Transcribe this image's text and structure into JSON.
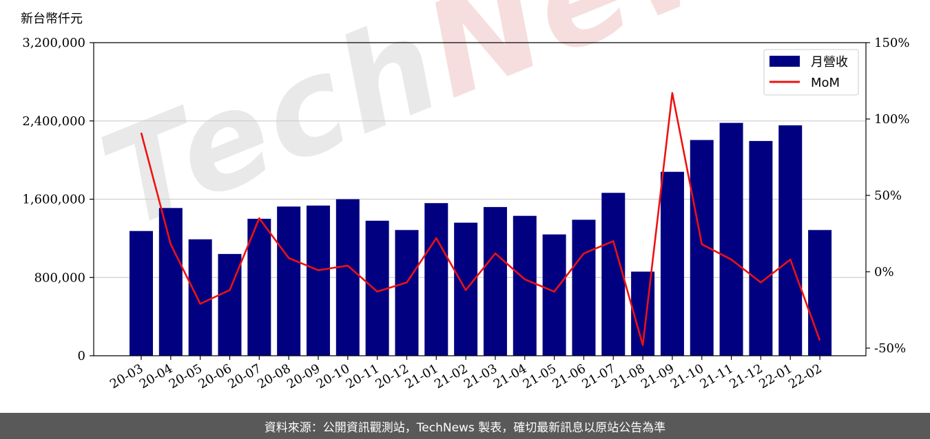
{
  "watermark": {
    "brand_a": "Tech",
    "brand_b": "News"
  },
  "footer": {
    "text": "資料來源：公開資訊觀測站，TechNews 製表，確切最新訊息以原站公告為準"
  },
  "chart_data": {
    "type": "bar+line",
    "y_unit_label": "新台幣仟元",
    "categories": [
      "20-03",
      "20-04",
      "20-05",
      "20-06",
      "20-07",
      "20-08",
      "20-09",
      "20-10",
      "20-11",
      "20-12",
      "21-01",
      "21-02",
      "21-03",
      "21-04",
      "21-05",
      "21-06",
      "21-07",
      "21-08",
      "21-09",
      "21-10",
      "21-11",
      "21-12",
      "22-01",
      "22-02"
    ],
    "series": [
      {
        "name": "月營收",
        "type": "bar",
        "axis": "left",
        "color": "#000080",
        "values": [
          1275000,
          1510000,
          1190000,
          1040000,
          1400000,
          1525000,
          1535000,
          1600000,
          1380000,
          1285000,
          1560000,
          1360000,
          1520000,
          1430000,
          1240000,
          1390000,
          1665000,
          860000,
          1880000,
          2205000,
          2380000,
          2195000,
          2355000,
          1285000
        ]
      },
      {
        "name": "MoM",
        "type": "line",
        "axis": "right",
        "color": "#ee1111",
        "values": [
          91,
          18,
          -21,
          -12,
          35,
          9,
          1,
          4,
          -13,
          -7,
          22,
          -12,
          12,
          -5,
          -13,
          12,
          20,
          -48,
          117,
          18,
          8,
          -7,
          8,
          -45
        ]
      }
    ],
    "left_axis": {
      "ylim": [
        0,
        3200000
      ],
      "ticks": [
        0,
        800000,
        1600000,
        2400000,
        3200000
      ],
      "tick_labels": [
        "0",
        "800,000",
        "1,600,000",
        "2,400,000",
        "3,200,000"
      ]
    },
    "right_axis": {
      "ylim": [
        -55,
        150
      ],
      "ticks": [
        -50,
        0,
        50,
        100,
        150
      ],
      "tick_labels": [
        "-50%",
        "0%",
        "50%",
        "100%",
        "150%"
      ]
    },
    "grid": true,
    "legend": "top-right"
  }
}
